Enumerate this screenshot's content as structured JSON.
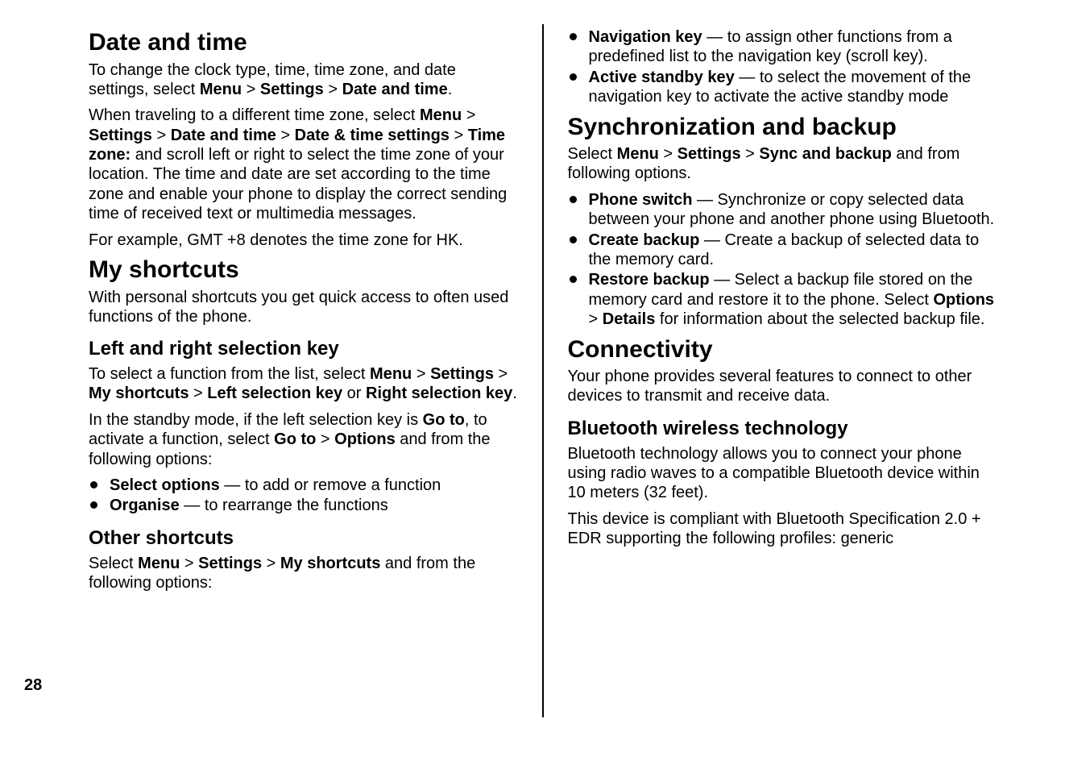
{
  "page_number": "28",
  "left": {
    "h1_date": "Date and time",
    "date_p1_pre": "To change the clock type, time, time zone, and date settings, select ",
    "date_p1_b1": "Menu",
    "gt": " > ",
    "date_p1_b2": "Settings",
    "date_p1_b3": "Date and time",
    "date_p1_post": ".",
    "date_p2_pre": "When traveling to a different time zone, select ",
    "date_p2_b1": "Menu",
    "date_p2_b2": "Settings",
    "date_p2_b3": "Date and time",
    "date_p2_b4": "Date & time settings",
    "date_p2_b5": "Time zone:",
    "date_p2_post": " and scroll left or right to select the time zone of your location. The time and date are set according to the time zone and enable your phone to display the correct sending time of received text or multimedia messages.",
    "date_p3": "For example, GMT +8 denotes the time zone for HK.",
    "h1_shortcuts": "My shortcuts",
    "shortcuts_p1": "With personal shortcuts you get quick access to often used functions of the phone.",
    "h2_lrkey": "Left and right selection key",
    "lrkey_p1_pre": "To select a function from the list, select ",
    "lrkey_p1_b1": "Menu",
    "lrkey_p1_b2": "Settings",
    "lrkey_p1_b3": "My shortcuts",
    "lrkey_p1_b4": "Left selection key",
    "lrkey_p1_or": " or ",
    "lrkey_p1_b5": "Right selection key",
    "lrkey_p1_post": ".",
    "lrkey_p2_pre": "In the standby mode, if the left selection key is ",
    "lrkey_p2_b1": "Go to",
    "lrkey_p2_mid": ", to activate a function, select ",
    "lrkey_p2_b2": "Go to",
    "lrkey_p2_b3": "Options",
    "lrkey_p2_post": " and from the following options:",
    "lrkey_li1_b": "Select options",
    "lrkey_li1_t": "  — to add or remove a function",
    "lrkey_li2_b": "Organise",
    "lrkey_li2_t": "  — to rearrange the functions",
    "h2_other": "Other shortcuts",
    "other_p1_pre": "Select ",
    "other_p1_b1": "Menu",
    "other_p1_b2": "Settings",
    "other_p1_b3": "My shortcuts",
    "other_p1_post": " and from the following options:"
  },
  "right": {
    "top_li1_b": "Navigation key",
    "top_li1_t": "  — to assign other functions from a predefined list to the navigation key (scroll key).",
    "top_li2_b": "Active standby key",
    "top_li2_t": "  — to select the movement of the navigation key to activate the active standby mode",
    "h1_sync": "Synchronization and backup",
    "sync_p1_pre": "Select ",
    "sync_p1_b1": "Menu",
    "gt": " > ",
    "sync_p1_b2": "Settings",
    "sync_p1_b3": "Sync and backup",
    "sync_p1_post": " and from following options.",
    "sync_li1_b": "Phone switch",
    "sync_li1_t": " — Synchronize or copy selected data between your phone and another phone using Bluetooth.",
    "sync_li2_b": "Create backup",
    "sync_li2_t": " — Create a backup of selected data to the memory card.",
    "sync_li3_b": "Restore backup",
    "sync_li3_t1": " — Select a backup file stored on the memory card and restore it to the phone. Select ",
    "sync_li3_b2": "Options",
    "sync_li3_b3": "Details",
    "sync_li3_t2": " for information about the selected backup file.",
    "h1_conn": "Connectivity",
    "conn_p1": "Your phone provides several features to connect to other devices to transmit and receive data.",
    "h2_bt": "Bluetooth wireless technology",
    "bt_p1": "Bluetooth technology allows you to connect your phone using radio waves to a compatible Bluetooth device within 10 meters (32 feet).",
    "bt_p2": "This device is compliant with Bluetooth Specification 2.0 + EDR supporting the following profiles: generic"
  }
}
